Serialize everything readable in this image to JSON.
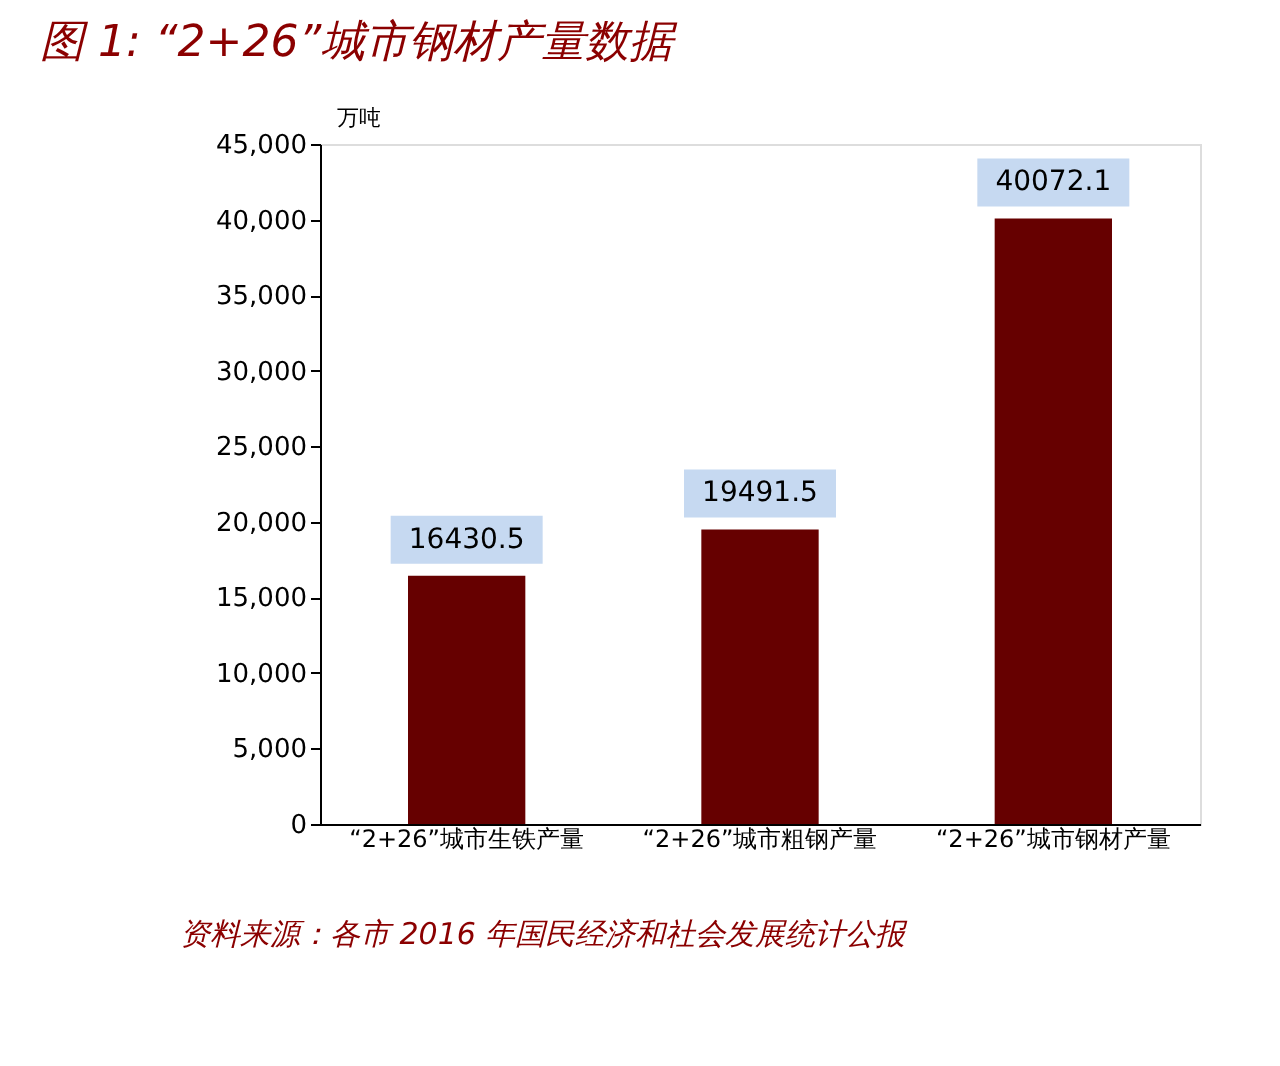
{
  "chart_data": {
    "type": "bar",
    "title": "图 1:   “2+26”城市钢材产量数据",
    "ylabel": "万吨",
    "categories": [
      "“2+26”城市生铁产量",
      "“2+26”城市粗钢产量",
      "“2+26”城市钢材产量"
    ],
    "values": [
      16430.5,
      19491.5,
      40072.1
    ],
    "color": "#660000",
    "ylim": [
      0,
      45000
    ],
    "yticks": [
      0,
      {
        "value": 5000,
        "label": "5,000"
      },
      {
        "value": 10000,
        "label": "10,000"
      },
      {
        "value": 15000,
        "label": "15,000"
      },
      {
        "value": 20000,
        "label": "20,000"
      },
      {
        "value": 25000,
        "label": "25,000"
      },
      {
        "value": 30000,
        "label": "30,000"
      },
      {
        "value": 35000,
        "label": "35,000"
      },
      {
        "value": 40000,
        "label": "40,000"
      },
      {
        "value": 45000,
        "label": "45,000"
      }
    ],
    "grid": false,
    "data_labels": true,
    "annotations": [
      "资料来源：各市 2016 年国民经济和社会发展统计公报"
    ]
  }
}
